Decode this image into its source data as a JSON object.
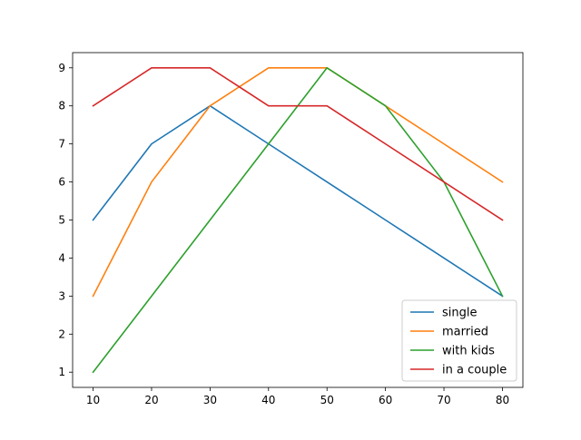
{
  "chart_data": {
    "type": "line",
    "title": "",
    "xlabel": "",
    "ylabel": "",
    "x": [
      10,
      20,
      30,
      40,
      50,
      60,
      70,
      80
    ],
    "xlim": [
      6.5,
      83.5
    ],
    "ylim": [
      0.6,
      9.4
    ],
    "xticks": [
      "10",
      "20",
      "30",
      "40",
      "50",
      "60",
      "70",
      "80"
    ],
    "yticks": [
      "1",
      "2",
      "3",
      "4",
      "5",
      "6",
      "7",
      "8",
      "9"
    ],
    "grid": false,
    "legend_position": "bottom-right",
    "series": [
      {
        "name": "single",
        "color": "#1f77b4",
        "values": [
          5,
          7,
          8,
          7,
          6,
          5,
          4,
          3
        ]
      },
      {
        "name": "married",
        "color": "#ff7f0e",
        "values": [
          3,
          6,
          8,
          9,
          9,
          8,
          7,
          6
        ]
      },
      {
        "name": "with kids",
        "color": "#2ca02c",
        "values": [
          1,
          3,
          5,
          7,
          9,
          8,
          6,
          3
        ]
      },
      {
        "name": "in a couple",
        "color": "#d62728",
        "values": [
          8,
          9,
          9,
          8,
          8,
          7,
          6,
          5
        ]
      }
    ]
  }
}
